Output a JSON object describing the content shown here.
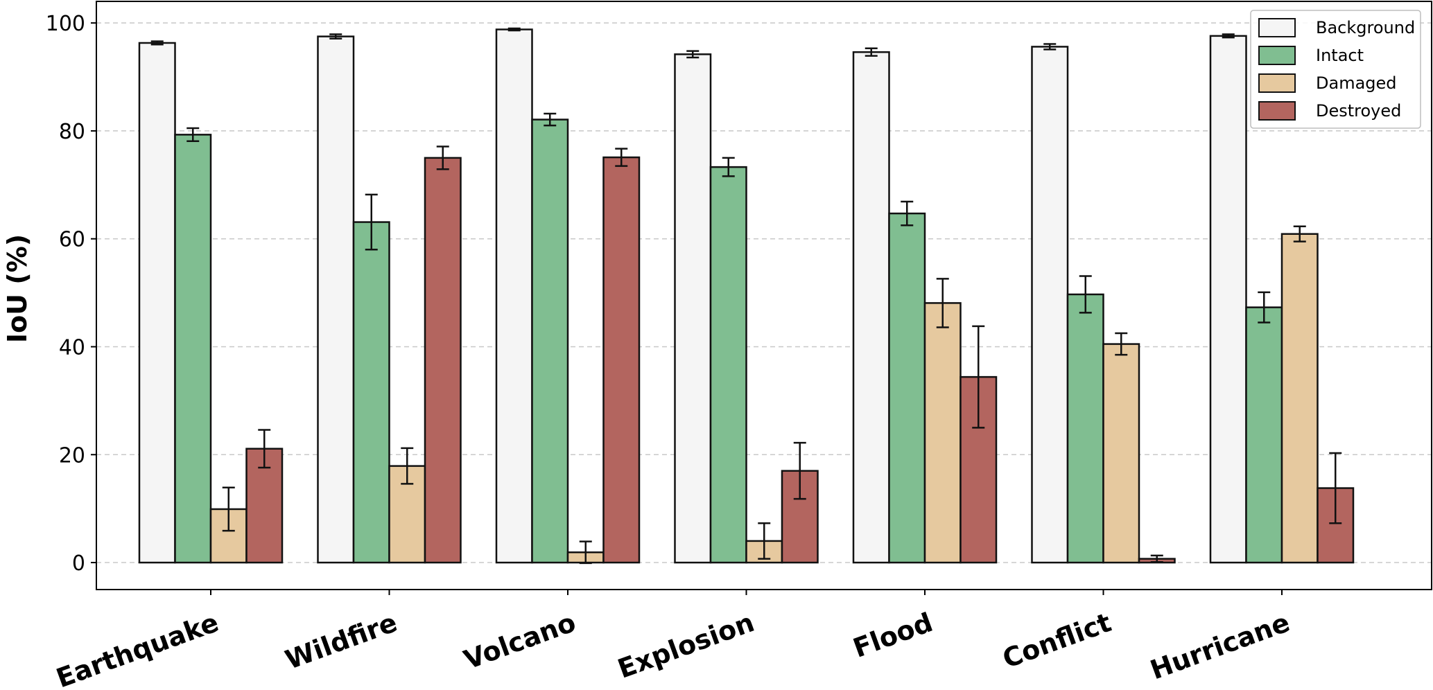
{
  "chart_data": {
    "type": "bar",
    "title": "",
    "xlabel": "",
    "ylabel": "IoU (%)",
    "ylim": [
      -5,
      104
    ],
    "yticks": [
      0,
      20,
      40,
      60,
      80,
      100
    ],
    "grid": "horizontal dashed",
    "legend_position": "top-right",
    "categories": [
      "Earthquake",
      "Wildfire",
      "Volcano",
      "Explosion",
      "Flood",
      "Conflict",
      "Hurricane"
    ],
    "series": [
      {
        "name": "Background",
        "color": "#f5f5f5",
        "values": [
          96.3,
          97.5,
          98.8,
          94.2,
          94.6,
          95.6,
          97.6
        ],
        "errors": [
          0.3,
          0.4,
          0.2,
          0.6,
          0.7,
          0.5,
          0.3
        ]
      },
      {
        "name": "Intact",
        "color": "#80be91",
        "values": [
          79.3,
          63.1,
          82.1,
          73.3,
          64.7,
          49.7,
          47.3
        ],
        "errors": [
          1.2,
          5.1,
          1.1,
          1.7,
          2.2,
          3.4,
          2.8
        ]
      },
      {
        "name": "Damaged",
        "color": "#e6c99f",
        "values": [
          9.9,
          17.9,
          1.9,
          4.0,
          48.1,
          40.5,
          60.9
        ],
        "errors": [
          4.0,
          3.3,
          2.0,
          3.3,
          4.5,
          2.0,
          1.4
        ]
      },
      {
        "name": "Destroyed",
        "color": "#b3655f",
        "values": [
          21.1,
          75.0,
          75.1,
          17.0,
          34.4,
          0.7,
          13.8
        ],
        "errors": [
          3.5,
          2.1,
          1.6,
          5.2,
          9.4,
          0.6,
          6.5
        ]
      }
    ]
  }
}
